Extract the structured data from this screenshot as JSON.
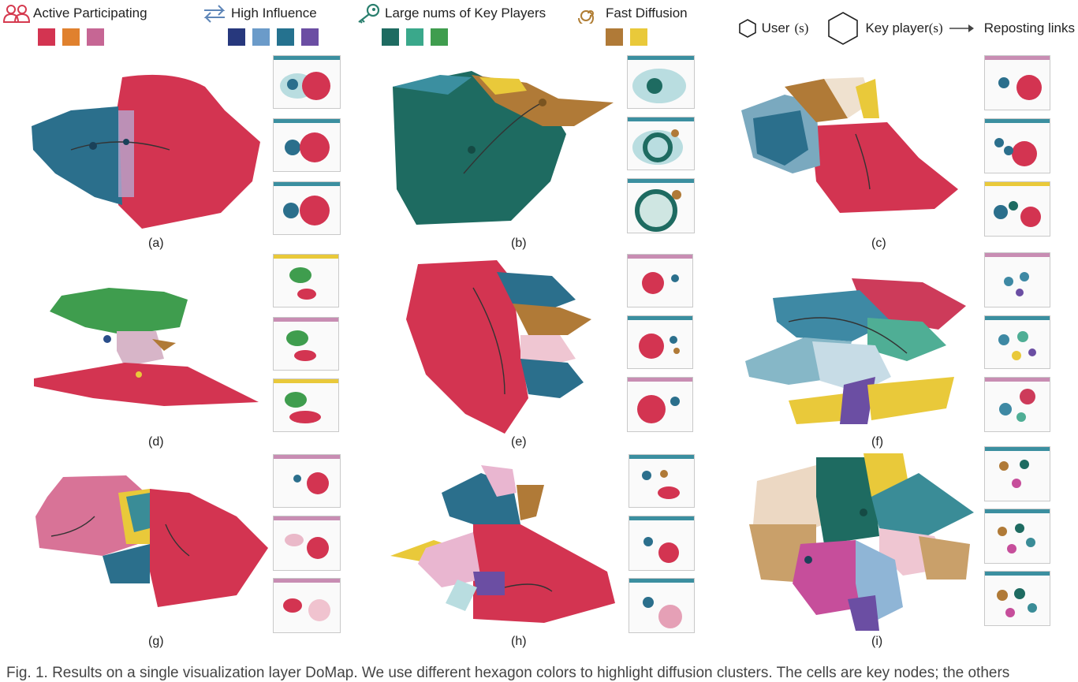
{
  "legend": {
    "groups": [
      {
        "label": "Active Participating",
        "icon": "users-icon",
        "icon_color": "#d53a4f",
        "swatches": [
          "#d33451",
          "#e0812e",
          "#c66694"
        ]
      },
      {
        "label": "High Influence",
        "icon": "swap-arrows-icon",
        "icon_color": "#5e86b8",
        "swatches": [
          "#27387d",
          "#6b9bc9",
          "#25728f",
          "#6b4ea3"
        ]
      },
      {
        "label": "Large nums of Key Players",
        "icon": "key-icon",
        "icon_color": "#2a7f6e",
        "swatches": [
          "#1e6b61",
          "#3aa88b",
          "#3f9d4e"
        ]
      },
      {
        "label": "Fast Diffusion",
        "icon": "spiral-icon",
        "icon_color": "#b07d33",
        "swatches": [
          "#b07a37",
          "#e9c93a"
        ]
      }
    ],
    "shapes": {
      "user_label": "User",
      "user_suffix": "(s)",
      "key_label": "Key player",
      "key_suffix": "(s)",
      "link_label": "Reposting links"
    }
  },
  "panels": [
    {
      "label": "(a)",
      "main_color": "#d33451"
    },
    {
      "label": "(b)",
      "main_color": "#1e6b61"
    },
    {
      "label": "(c)",
      "main_color": "#d33451"
    },
    {
      "label": "(d)",
      "main_color": "#d33451"
    },
    {
      "label": "(e)",
      "main_color": "#d33451"
    },
    {
      "label": "(f)",
      "main_color": "#cd3b5a"
    },
    {
      "label": "(g)",
      "main_color": "#d33451"
    },
    {
      "label": "(h)",
      "main_color": "#d33451"
    },
    {
      "label": "(i)",
      "main_color": "#1e6b61"
    }
  ],
  "caption": "Fig. 1. Results on a single visualization layer DoMap. We use different hexagon colors to highlight diffusion clusters. The cells are key nodes; the others"
}
